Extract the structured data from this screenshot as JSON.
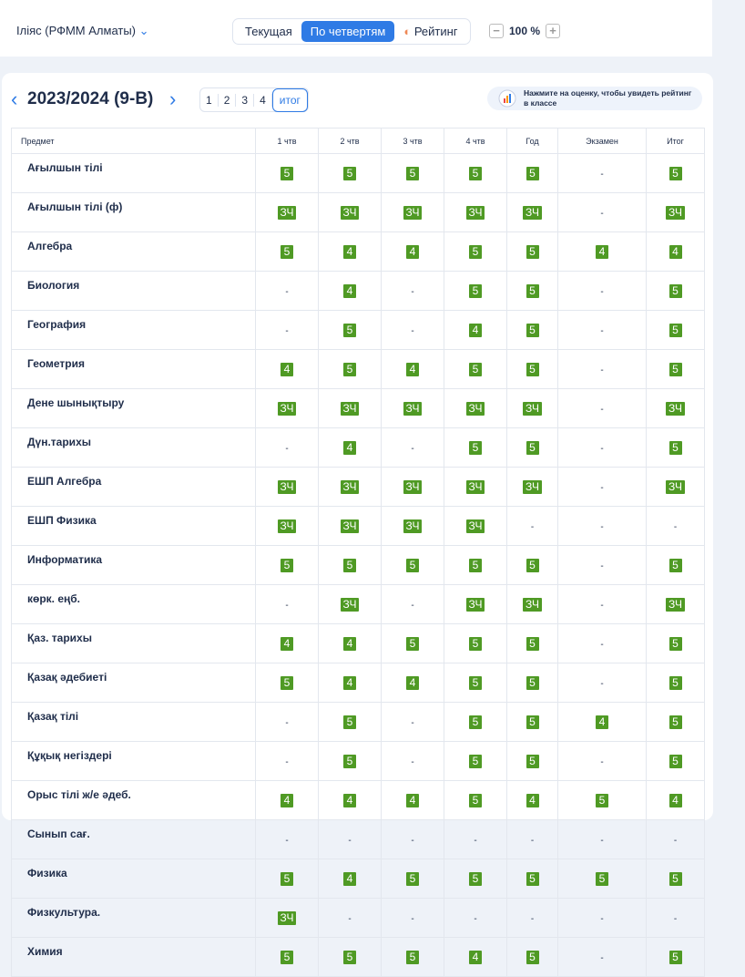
{
  "header": {
    "user": "Іліяс (РФММ Алматы)",
    "views": [
      "Текущая",
      "По четвертям",
      "Рейтинг"
    ],
    "zoom": "100 %"
  },
  "card": {
    "title": "2023/2024 (9-В)",
    "tabs": [
      "1",
      "2",
      "3",
      "4",
      "итог"
    ],
    "hint": "Нажмите на оценку, чтобы увидеть рейтинг в классе"
  },
  "table": {
    "columns": [
      "Предмет",
      "1 чтв",
      "2 чтв",
      "3 чтв",
      "4 чтв",
      "Год",
      "Экзамен",
      "Итог"
    ],
    "rows": [
      {
        "subject": "Ағылшын тілі",
        "grades": [
          "5",
          "5",
          "5",
          "5",
          "5",
          "-",
          "5"
        ]
      },
      {
        "subject": "Ағылшын тілі (ф)",
        "grades": [
          "ЗЧ",
          "ЗЧ",
          "ЗЧ",
          "ЗЧ",
          "ЗЧ",
          "-",
          "ЗЧ"
        ]
      },
      {
        "subject": "Алгебра",
        "grades": [
          "5",
          "4",
          "4",
          "5",
          "5",
          "4",
          "4"
        ]
      },
      {
        "subject": "Биология",
        "grades": [
          "-",
          "4",
          "-",
          "5",
          "5",
          "-",
          "5"
        ]
      },
      {
        "subject": "География",
        "grades": [
          "-",
          "5",
          "-",
          "4",
          "5",
          "-",
          "5"
        ]
      },
      {
        "subject": "Геометрия",
        "grades": [
          "4",
          "5",
          "4",
          "5",
          "5",
          "-",
          "5"
        ]
      },
      {
        "subject": "Дене шынықтыру",
        "grades": [
          "ЗЧ",
          "ЗЧ",
          "ЗЧ",
          "ЗЧ",
          "ЗЧ",
          "-",
          "ЗЧ"
        ]
      },
      {
        "subject": "Дүн.тарихы",
        "grades": [
          "-",
          "4",
          "-",
          "5",
          "5",
          "-",
          "5"
        ]
      },
      {
        "subject": "ЕШП Алгебра",
        "grades": [
          "ЗЧ",
          "ЗЧ",
          "ЗЧ",
          "ЗЧ",
          "ЗЧ",
          "-",
          "ЗЧ"
        ]
      },
      {
        "subject": "ЕШП Физика",
        "grades": [
          "ЗЧ",
          "ЗЧ",
          "ЗЧ",
          "ЗЧ",
          "-",
          "-",
          "-"
        ]
      },
      {
        "subject": "Информатика",
        "grades": [
          "5",
          "5",
          "5",
          "5",
          "5",
          "-",
          "5"
        ]
      },
      {
        "subject": "көрк. еңб.",
        "grades": [
          "-",
          "ЗЧ",
          "-",
          "ЗЧ",
          "ЗЧ",
          "-",
          "ЗЧ"
        ]
      },
      {
        "subject": "Қаз. тарихы",
        "grades": [
          "4",
          "4",
          "5",
          "5",
          "5",
          "-",
          "5"
        ]
      },
      {
        "subject": "Қазақ әдебиеті",
        "grades": [
          "5",
          "4",
          "4",
          "5",
          "5",
          "-",
          "5"
        ]
      },
      {
        "subject": "Қазақ тілі",
        "grades": [
          "-",
          "5",
          "-",
          "5",
          "5",
          "4",
          "5"
        ]
      },
      {
        "subject": "Құқық негіздері",
        "grades": [
          "-",
          "5",
          "-",
          "5",
          "5",
          "-",
          "5"
        ]
      },
      {
        "subject": "Орыс тілі ж/е әдеб.",
        "grades": [
          "4",
          "4",
          "4",
          "5",
          "4",
          "5",
          "4"
        ]
      },
      {
        "subject": "Сынып сағ.",
        "grades": [
          "-",
          "-",
          "-",
          "-",
          "-",
          "-",
          "-"
        ]
      },
      {
        "subject": "Физика",
        "grades": [
          "5",
          "4",
          "5",
          "5",
          "5",
          "5",
          "5"
        ]
      },
      {
        "subject": "Физкультура.",
        "grades": [
          "ЗЧ",
          "-",
          "-",
          "-",
          "-",
          "-",
          "-"
        ]
      },
      {
        "subject": "Химия",
        "grades": [
          "5",
          "5",
          "5",
          "4",
          "5",
          "-",
          "5"
        ]
      }
    ]
  }
}
